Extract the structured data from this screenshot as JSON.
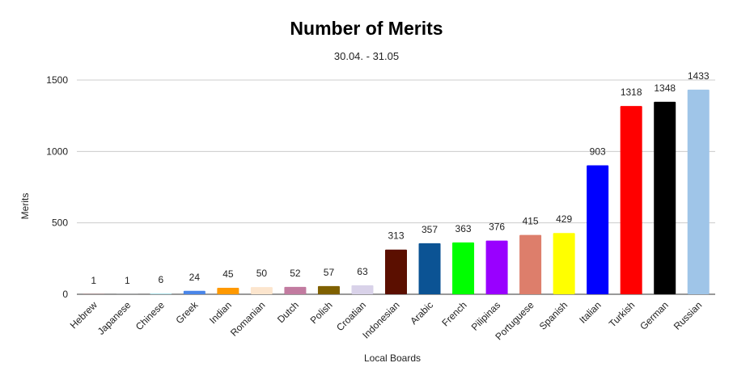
{
  "chart_data": {
    "type": "bar",
    "title": "Number of Merits",
    "subtitle": "30.04. - 31.05",
    "xlabel": "Local Boards",
    "ylabel": "Merits",
    "ylim": [
      0,
      1500
    ],
    "yticks": [
      0,
      500,
      1000,
      1500
    ],
    "grid": true,
    "categories": [
      "Hebrew",
      "Japanese",
      "Chinese",
      "Greek",
      "Indian",
      "Romanian",
      "Dutch",
      "Polish",
      "Croatian",
      "Indonesian",
      "Arabic",
      "French",
      "Pilipinas",
      "Portuguese",
      "Spanish",
      "Italian",
      "Turkish",
      "German",
      "Russian"
    ],
    "values": [
      1,
      1,
      6,
      24,
      45,
      50,
      52,
      57,
      63,
      313,
      357,
      363,
      376,
      415,
      429,
      903,
      1318,
      1348,
      1433
    ],
    "colors": [
      "#c62828",
      "#90a4ae",
      "#a8e0e8",
      "#4a86e8",
      "#ff9900",
      "#fce5cd",
      "#c27ba0",
      "#7f6000",
      "#d9d2e9",
      "#5b0f00",
      "#0b5394",
      "#00ff00",
      "#9900ff",
      "#dd7e6b",
      "#ffff00",
      "#0000ff",
      "#ff0000",
      "#000000",
      "#9fc5e8"
    ]
  }
}
